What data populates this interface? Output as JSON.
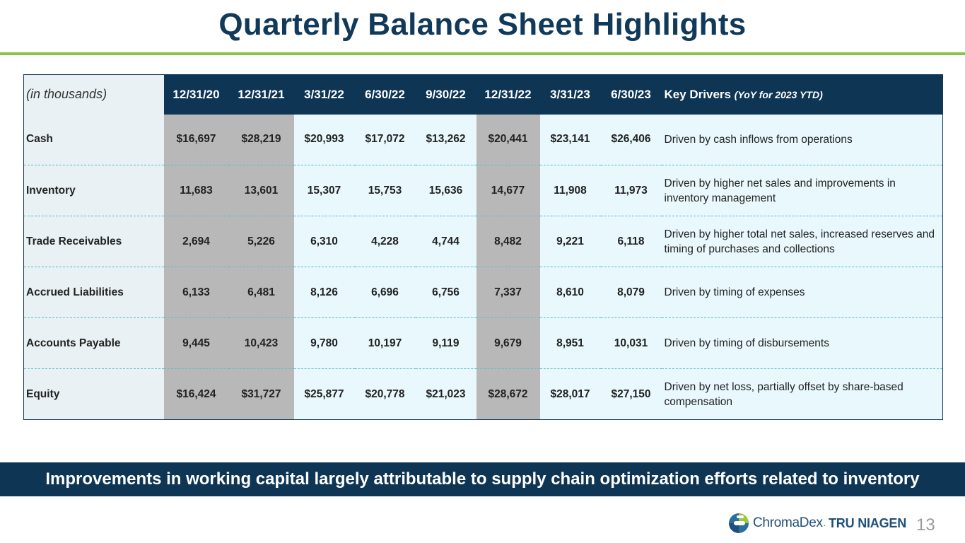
{
  "title": "Quarterly Balance Sheet Highlights",
  "table": {
    "unit_label": "(in thousands)",
    "periods": [
      "12/31/20",
      "12/31/21",
      "3/31/22",
      "6/30/22",
      "9/30/22",
      "12/31/22",
      "3/31/23",
      "6/30/23"
    ],
    "drivers_header": "Key Drivers",
    "drivers_note": "(YoY for 2023 YTD)",
    "rows": [
      {
        "label": "Cash",
        "values": [
          "$16,697",
          "$28,219",
          "$20,993",
          "$17,072",
          "$13,262",
          "$20,441",
          "$23,141",
          "$26,406"
        ],
        "driver": "Driven by cash inflows from operations"
      },
      {
        "label": "Inventory",
        "values": [
          "11,683",
          "13,601",
          "15,307",
          "15,753",
          "15,636",
          "14,677",
          "11,908",
          "11,973"
        ],
        "driver": "Driven by higher net sales and improvements in inventory management"
      },
      {
        "label": "Trade Receivables",
        "values": [
          "2,694",
          "5,226",
          "6,310",
          "4,228",
          "4,744",
          "8,482",
          "9,221",
          "6,118"
        ],
        "driver": "Driven by higher total net sales, increased reserves and timing of purchases and collections"
      },
      {
        "label": "Accrued Liabilities",
        "values": [
          "6,133",
          "6,481",
          "8,126",
          "6,696",
          "6,756",
          "7,337",
          "8,610",
          "8,079"
        ],
        "driver": "Driven by timing of expenses"
      },
      {
        "label": "Accounts Payable",
        "values": [
          "9,445",
          "10,423",
          "9,780",
          "10,197",
          "9,119",
          "9,679",
          "8,951",
          "10,031"
        ],
        "driver": "Driven by timing of disbursements"
      },
      {
        "label": "Equity",
        "values": [
          "$16,424",
          "$31,727",
          "$25,877",
          "$20,778",
          "$21,023",
          "$28,672",
          "$28,017",
          "$27,150"
        ],
        "driver": "Driven by net loss, partially offset by share-based compensation"
      }
    ]
  },
  "banner": "Improvements in working capital largely attributable to supply chain optimization efforts related to inventory",
  "footer": {
    "logo_text_1": "ChromaDex",
    "logo_sep": ".",
    "logo_text_2": "TRU NIAGEN",
    "page_number": "13"
  },
  "colors": {
    "navy": "#0e3554",
    "title": "#113a5a",
    "accent_green": "#8bc34a",
    "year_end_shade": "#b8b8b8",
    "row_bg": "#e8f8fd"
  }
}
